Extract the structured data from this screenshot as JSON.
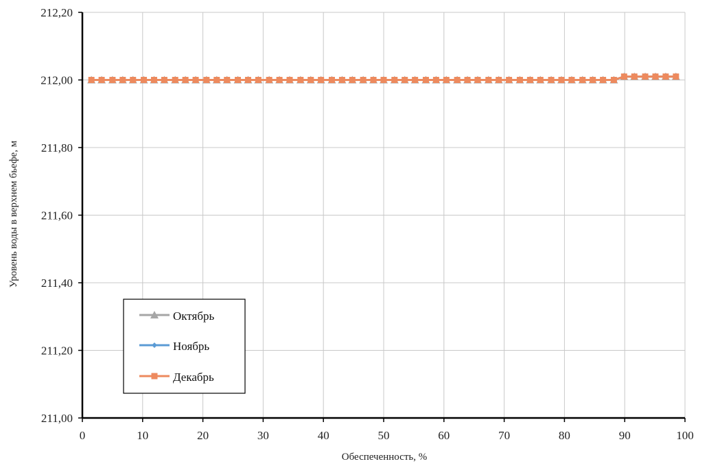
{
  "chart_data": {
    "type": "line",
    "title": "",
    "xlabel": "Обеспеченность, %",
    "ylabel": "Уровень воды в верхнем бьефе, м",
    "xlim": [
      0,
      100
    ],
    "ylim": [
      211.0,
      212.2
    ],
    "x_ticks": [
      0,
      10,
      20,
      30,
      40,
      50,
      60,
      70,
      80,
      90,
      100
    ],
    "x_tick_labels": [
      "0",
      "10",
      "20",
      "30",
      "40",
      "50",
      "60",
      "70",
      "80",
      "90",
      "100"
    ],
    "y_ticks": [
      211.0,
      211.2,
      211.4,
      211.6,
      211.8,
      212.0,
      212.2
    ],
    "y_tick_labels": [
      "211,00",
      "211,20",
      "211,40",
      "211,60",
      "211,80",
      "212,00",
      "212,20"
    ],
    "grid": true,
    "legend_position": "lower-left",
    "x": [
      1.5,
      3.2,
      5.0,
      6.7,
      8.4,
      10.2,
      11.9,
      13.6,
      15.4,
      17.1,
      18.8,
      20.6,
      22.3,
      24.0,
      25.8,
      27.5,
      29.2,
      31.0,
      32.7,
      34.4,
      36.2,
      37.9,
      39.6,
      41.4,
      43.1,
      44.8,
      46.6,
      48.3,
      50.0,
      51.8,
      53.5,
      55.2,
      57.0,
      58.7,
      60.4,
      62.2,
      63.9,
      65.6,
      67.4,
      69.1,
      70.8,
      72.6,
      74.3,
      76.0,
      77.8,
      79.5,
      81.2,
      83.0,
      84.7,
      86.4,
      88.2,
      89.9,
      91.6,
      93.4,
      95.1,
      96.8,
      98.5
    ],
    "series": [
      {
        "name": "Октябрь",
        "color": "#a6a6a6",
        "marker": "triangle",
        "values": [
          212.0,
          212.0,
          212.0,
          212.0,
          212.0,
          212.0,
          212.0,
          212.0,
          212.0,
          212.0,
          212.0,
          212.0,
          212.0,
          212.0,
          212.0,
          212.0,
          212.0,
          212.0,
          212.0,
          212.0,
          212.0,
          212.0,
          212.0,
          212.0,
          212.0,
          212.0,
          212.0,
          212.0,
          212.0,
          212.0,
          212.0,
          212.0,
          212.0,
          212.0,
          212.0,
          212.0,
          212.0,
          212.0,
          212.0,
          212.0,
          212.0,
          212.0,
          212.0,
          212.0,
          212.0,
          212.0,
          212.0,
          212.0,
          212.0,
          212.0,
          212.0,
          212.01,
          212.01,
          212.01,
          212.01,
          212.01,
          212.01
        ]
      },
      {
        "name": "Ноябрь",
        "color": "#5b9bd5",
        "marker": "diamond",
        "values": [
          212.0,
          212.0,
          212.0,
          212.0,
          212.0,
          212.0,
          212.0,
          212.0,
          212.0,
          212.0,
          212.0,
          212.0,
          212.0,
          212.0,
          212.0,
          212.0,
          212.0,
          212.0,
          212.0,
          212.0,
          212.0,
          212.0,
          212.0,
          212.0,
          212.0,
          212.0,
          212.0,
          212.0,
          212.0,
          212.0,
          212.0,
          212.0,
          212.0,
          212.0,
          212.0,
          212.0,
          212.0,
          212.0,
          212.0,
          212.0,
          212.0,
          212.0,
          212.0,
          212.0,
          212.0,
          212.0,
          212.0,
          212.0,
          212.0,
          212.0,
          212.0,
          212.01,
          212.01,
          212.01,
          212.01,
          212.01,
          212.01
        ]
      },
      {
        "name": "Декабрь",
        "color": "#ed8a5e",
        "marker": "square",
        "values": [
          212.0,
          212.0,
          212.0,
          212.0,
          212.0,
          212.0,
          212.0,
          212.0,
          212.0,
          212.0,
          212.0,
          212.0,
          212.0,
          212.0,
          212.0,
          212.0,
          212.0,
          212.0,
          212.0,
          212.0,
          212.0,
          212.0,
          212.0,
          212.0,
          212.0,
          212.0,
          212.0,
          212.0,
          212.0,
          212.0,
          212.0,
          212.0,
          212.0,
          212.0,
          212.0,
          212.0,
          212.0,
          212.0,
          212.0,
          212.0,
          212.0,
          212.0,
          212.0,
          212.0,
          212.0,
          212.0,
          212.0,
          212.0,
          212.0,
          212.0,
          212.0,
          212.01,
          212.01,
          212.01,
          212.01,
          212.01,
          212.01
        ]
      }
    ]
  }
}
